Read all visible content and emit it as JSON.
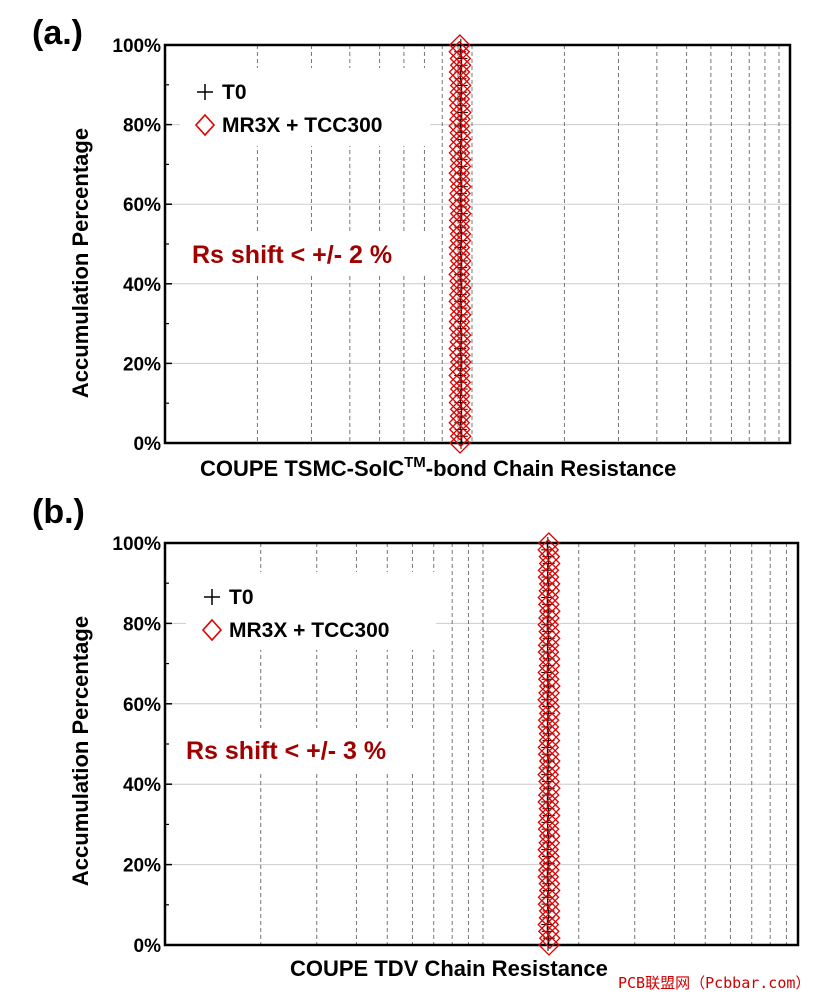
{
  "colors": {
    "t0": "#000000",
    "mr3x": "#e00000",
    "annot": "#a00000",
    "watermark": "#cc0000"
  },
  "chart_data": [
    {
      "type": "scatter",
      "panel_label": "(a.)",
      "xlabel": "COUPE TSMC-SoIC",
      "xlabel_sup": "TM",
      "xlabel_rest": "-bond Chain Resistance",
      "ylabel": "Accumulation Percentage",
      "yticks": [
        "0%",
        "20%",
        "40%",
        "60%",
        "80%",
        "100%"
      ],
      "ylim": [
        0,
        100
      ],
      "x_scale": "log",
      "x_tick_labels_shown": false,
      "grid": true,
      "legend_position": "top-left",
      "legend": [
        "T0",
        "MR3X + TCC300"
      ],
      "annotation": "Rs shift < +/- 2 %",
      "series": [
        {
          "name": "T0",
          "marker": "plus",
          "x_relative": 1.0,
          "y_range": [
            0,
            100
          ]
        },
        {
          "name": "MR3X + TCC300",
          "marker": "diamond",
          "x_relative": 1.0,
          "y_range": [
            0,
            100
          ],
          "shift_pct": 2
        }
      ]
    },
    {
      "type": "scatter",
      "panel_label": "(b.)",
      "xlabel": "COUPE TDV Chain Resistance",
      "ylabel": "Accumulation Percentage",
      "yticks": [
        "0%",
        "20%",
        "40%",
        "60%",
        "80%",
        "100%"
      ],
      "ylim": [
        0,
        100
      ],
      "x_scale": "log",
      "x_tick_labels_shown": false,
      "grid": true,
      "legend_position": "top-left",
      "legend": [
        "T0",
        "MR3X + TCC300"
      ],
      "annotation": "Rs shift < +/- 3 %",
      "series": [
        {
          "name": "T0",
          "marker": "plus",
          "x_relative": 1.0,
          "y_range": [
            0,
            100
          ]
        },
        {
          "name": "MR3X + TCC300",
          "marker": "diamond",
          "x_relative": 1.0,
          "y_range": [
            0,
            100
          ],
          "shift_pct": 3
        }
      ]
    }
  ],
  "watermark": "PCB联盟网（Pcbbar.com）"
}
